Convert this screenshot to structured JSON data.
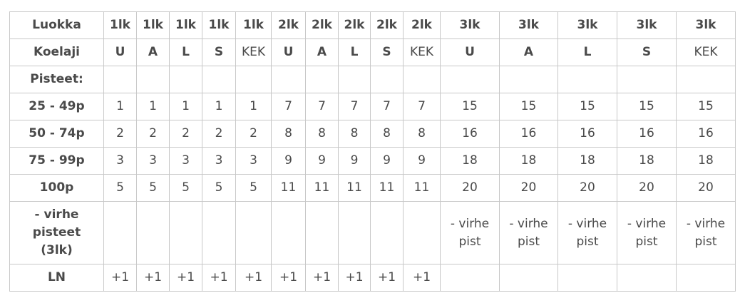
{
  "table": {
    "rows": [
      {
        "label": "Luokka",
        "bold": true,
        "cells": [
          "1lk",
          "1lk",
          "1lk",
          "1lk",
          "1lk",
          "2lk",
          "2lk",
          "2lk",
          "2lk",
          "2lk",
          "3lk",
          "3lk",
          "3lk",
          "3lk",
          "3lk"
        ]
      },
      {
        "label": "Koelaji",
        "bold": true,
        "cells": [
          "U",
          "A",
          "L",
          "S",
          "KEK",
          "U",
          "A",
          "L",
          "S",
          "KEK",
          "U",
          "A",
          "L",
          "S",
          "KEK"
        ]
      },
      {
        "label": "Pisteet:",
        "bold": false,
        "cells": [
          "",
          "",
          "",
          "",
          "",
          "",
          "",
          "",
          "",
          "",
          "",
          "",
          "",
          "",
          ""
        ]
      },
      {
        "label": "25 - 49p",
        "bold": false,
        "cells": [
          "1",
          "1",
          "1",
          "1",
          "1",
          "7",
          "7",
          "7",
          "7",
          "7",
          "15",
          "15",
          "15",
          "15",
          "15"
        ]
      },
      {
        "label": "50 - 74p",
        "bold": false,
        "cells": [
          "2",
          "2",
          "2",
          "2",
          "2",
          "8",
          "8",
          "8",
          "8",
          "8",
          "16",
          "16",
          "16",
          "16",
          "16"
        ]
      },
      {
        "label": "75 - 99p",
        "bold": false,
        "cells": [
          "3",
          "3",
          "3",
          "3",
          "3",
          "9",
          "9",
          "9",
          "9",
          "9",
          "18",
          "18",
          "18",
          "18",
          "18"
        ]
      },
      {
        "label": "100p",
        "bold": false,
        "cells": [
          "5",
          "5",
          "5",
          "5",
          "5",
          "11",
          "11",
          "11",
          "11",
          "11",
          "20",
          "20",
          "20",
          "20",
          "20"
        ]
      },
      {
        "label": "- virhe pisteet (3lk)",
        "bold": false,
        "tall": true,
        "cells": [
          "",
          "",
          "",
          "",
          "",
          "",
          "",
          "",
          "",
          "",
          "- virhe pist",
          "- virhe pist",
          "- virhe pist",
          "- virhe pist",
          "- virhe pist"
        ]
      },
      {
        "label": "LN",
        "bold": false,
        "cells": [
          "+1",
          "+1",
          "+1",
          "+1",
          "+1",
          "+1",
          "+1",
          "+1",
          "+1",
          "+1",
          "",
          "",
          "",
          "",
          ""
        ]
      }
    ]
  }
}
